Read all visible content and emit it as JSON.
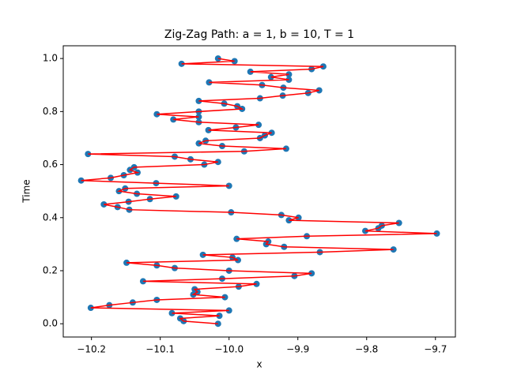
{
  "chart_data": {
    "type": "scatter",
    "title": "Zig-Zag Path: a = 1, b = 10, T = 1",
    "x_label": "x",
    "y_label": "Time",
    "xlim": [
      -10.241,
      -9.671
    ],
    "ylim": [
      -0.05,
      1.048
    ],
    "xticks": [
      {
        "value": -10.2,
        "label": "−10.2"
      },
      {
        "value": -10.1,
        "label": "−10.1"
      },
      {
        "value": -10.0,
        "label": "−10.0"
      },
      {
        "value": -9.9,
        "label": "−9.9"
      },
      {
        "value": -9.8,
        "label": "−9.8"
      },
      {
        "value": -9.7,
        "label": "−9.7"
      }
    ],
    "yticks": [
      {
        "value": 0,
        "label": "0.0"
      },
      {
        "value": 0.2,
        "label": "0.2"
      },
      {
        "value": 0.4,
        "label": "0.4"
      },
      {
        "value": 0.6,
        "label": "0.6"
      },
      {
        "value": 0.8,
        "label": "0.8"
      },
      {
        "value": 1.0,
        "label": "1.0"
      }
    ],
    "x": [
      -10.016,
      -10.066,
      -10.071,
      -10.014,
      -10.083,
      -10.0,
      -10.201,
      -10.174,
      -10.14,
      -10.105,
      -10.006,
      -10.052,
      -10.046,
      -10.05,
      -9.986,
      -9.96,
      -10.125,
      -10.01,
      -9.905,
      -9.88,
      -10.0,
      -10.079,
      -10.105,
      -10.149,
      -9.987,
      -9.995,
      -10.038,
      -9.868,
      -9.761,
      -9.92,
      -9.946,
      -9.943,
      -9.989,
      -9.887,
      -9.698,
      -9.802,
      -9.783,
      -9.778,
      -9.753,
      -9.913,
      -9.899,
      -9.924,
      -9.997,
      -10.145,
      -10.162,
      -10.182,
      -10.146,
      -10.115,
      -10.077,
      -10.134,
      -10.16,
      -10.151,
      -10.0,
      -10.106,
      -10.215,
      -10.172,
      -10.153,
      -10.133,
      -10.144,
      -10.138,
      -10.036,
      -10.016,
      -10.056,
      -10.079,
      -10.205,
      -9.978,
      -9.917,
      -10.01,
      -10.044,
      -10.034,
      -9.955,
      -9.948,
      -9.938,
      -10.03,
      -9.99,
      -9.957,
      -10.044,
      -10.081,
      -10.044,
      -10.105,
      -10.044,
      -9.981,
      -9.988,
      -10.007,
      -10.044,
      -9.955,
      -9.922,
      -9.885,
      -9.869,
      -9.921,
      -9.952,
      -10.029,
      -9.913,
      -9.939,
      -9.913,
      -9.969,
      -9.88,
      -9.863,
      -10.069,
      -9.992,
      -10.016
    ],
    "series": [
      {
        "color": "#ff0000",
        "marker_color": "#1f77b4",
        "values": [
          0,
          0.01,
          0.02,
          0.03,
          0.04,
          0.05,
          0.06,
          0.07,
          0.08,
          0.09,
          0.1,
          0.11,
          0.12,
          0.13,
          0.14,
          0.15,
          0.16,
          0.17,
          0.18,
          0.19,
          0.2,
          0.21,
          0.22,
          0.23,
          0.24,
          0.25,
          0.26,
          0.27,
          0.28,
          0.29,
          0.3,
          0.31,
          0.32,
          0.33,
          0.34,
          0.35,
          0.36,
          0.37,
          0.38,
          0.39,
          0.4,
          0.41,
          0.42,
          0.43,
          0.44,
          0.45,
          0.46,
          0.47,
          0.48,
          0.49,
          0.5,
          0.51,
          0.52,
          0.53,
          0.54,
          0.55,
          0.56,
          0.57,
          0.58,
          0.59,
          0.6,
          0.61,
          0.62,
          0.63,
          0.64,
          0.65,
          0.66,
          0.67,
          0.68,
          0.69,
          0.7,
          0.71,
          0.72,
          0.73,
          0.74,
          0.75,
          0.76,
          0.77,
          0.78,
          0.79,
          0.8,
          0.81,
          0.82,
          0.83,
          0.84,
          0.85,
          0.86,
          0.87,
          0.88,
          0.89,
          0.9,
          0.91,
          0.92,
          0.93,
          0.94,
          0.95,
          0.96,
          0.97,
          0.98,
          0.99,
          1.0
        ]
      }
    ]
  }
}
